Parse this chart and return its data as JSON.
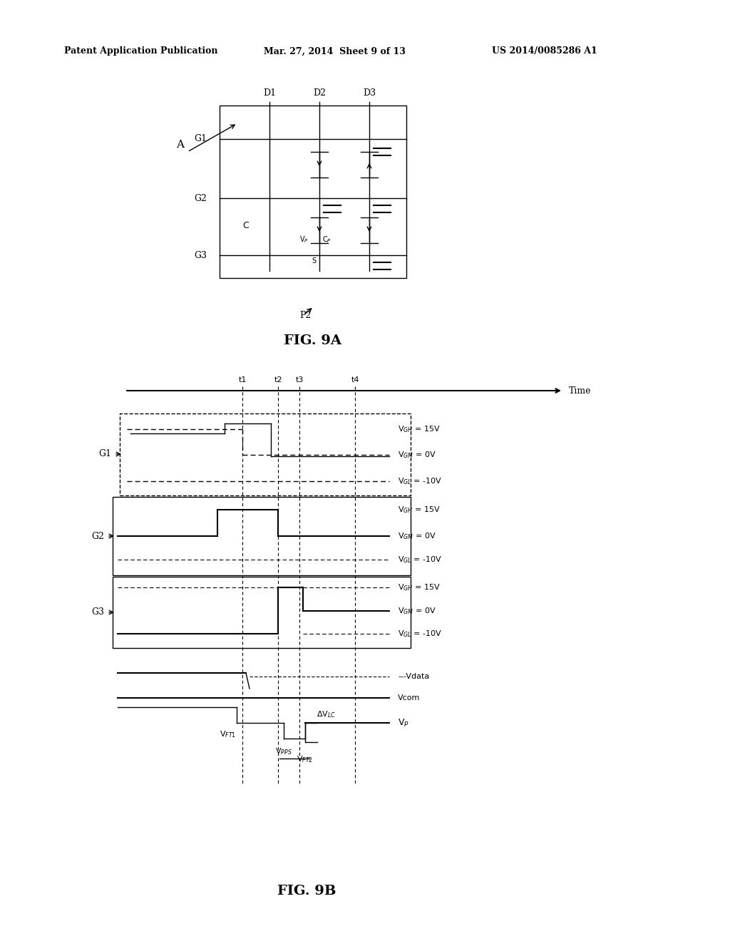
{
  "bg_color": "#ffffff",
  "header_text1": "Patent Application Publication",
  "header_text2": "Mar. 27, 2014  Sheet 9 of 13",
  "header_text3": "US 2014/0085286 A1",
  "fig9a_label": "FIG. 9A",
  "fig9b_label": "FIG. 9B"
}
